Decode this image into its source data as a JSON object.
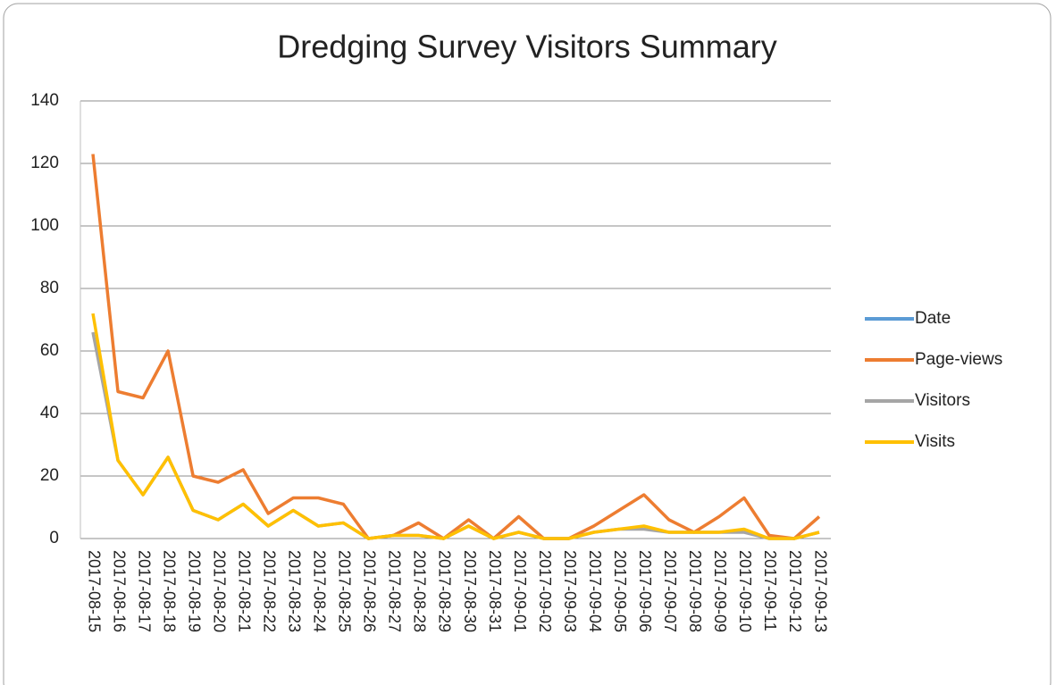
{
  "chart_data": {
    "type": "line",
    "title": "Dredging Survey Visitors Summary",
    "categories": [
      "2017-08-15",
      "2017-08-16",
      "2017-08-17",
      "2017-08-18",
      "2017-08-19",
      "2017-08-20",
      "2017-08-21",
      "2017-08-22",
      "2017-08-23",
      "2017-08-24",
      "2017-08-25",
      "2017-08-26",
      "2017-08-27",
      "2017-08-28",
      "2017-08-29",
      "2017-08-30",
      "2017-08-31",
      "2017-09-01",
      "2017-09-02",
      "2017-09-03",
      "2017-09-04",
      "2017-09-05",
      "2017-09-06",
      "2017-09-07",
      "2017-09-08",
      "2017-09-09",
      "2017-09-10",
      "2017-09-11",
      "2017-09-12",
      "2017-09-13"
    ],
    "series": [
      {
        "name": "Date",
        "color": "#5b9bd5",
        "values": [
          null,
          null,
          null,
          null,
          null,
          null,
          null,
          null,
          null,
          null,
          null,
          null,
          null,
          null,
          null,
          null,
          null,
          null,
          null,
          null,
          null,
          null,
          null,
          null,
          null,
          null,
          null,
          null,
          null,
          null
        ]
      },
      {
        "name": "Page-views",
        "color": "#ed7d31",
        "values": [
          123,
          47,
          45,
          60,
          20,
          18,
          22,
          8,
          13,
          13,
          11,
          0,
          1,
          5,
          0,
          6,
          0,
          7,
          0,
          0,
          4,
          9,
          14,
          6,
          2,
          7,
          13,
          1,
          0,
          7
        ]
      },
      {
        "name": "Visitors",
        "color": "#a5a5a5",
        "values": [
          66,
          25,
          14,
          26,
          9,
          6,
          11,
          4,
          9,
          4,
          5,
          0,
          1,
          1,
          0,
          4,
          0,
          2,
          0,
          0,
          2,
          3,
          3,
          2,
          2,
          2,
          2,
          0,
          0,
          2
        ]
      },
      {
        "name": "Visits",
        "color": "#ffc000",
        "values": [
          72,
          25,
          14,
          26,
          9,
          6,
          11,
          4,
          9,
          4,
          5,
          0,
          1,
          1,
          0,
          4,
          0,
          2,
          0,
          0,
          2,
          3,
          4,
          2,
          2,
          2,
          3,
          0,
          0,
          2
        ]
      }
    ],
    "ylim": [
      0,
      140
    ],
    "yticks": [
      0,
      20,
      40,
      60,
      80,
      100,
      120,
      140
    ],
    "grid": true,
    "legend": "right"
  }
}
